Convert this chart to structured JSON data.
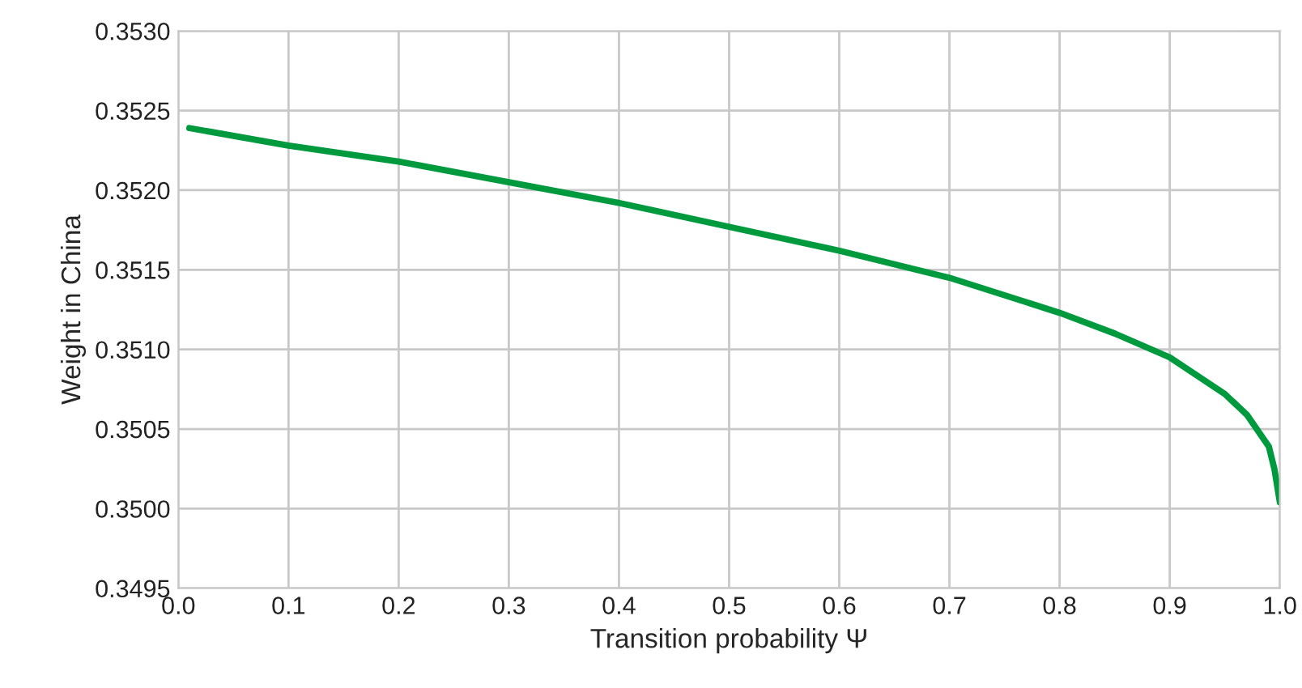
{
  "chart_data": {
    "type": "line",
    "xlabel": "Transition probability Ψ",
    "ylabel": "Weight in China",
    "x": [
      0.01,
      0.1,
      0.2,
      0.3,
      0.4,
      0.5,
      0.6,
      0.7,
      0.8,
      0.85,
      0.9,
      0.95,
      0.97,
      0.99,
      0.995,
      1.0
    ],
    "series": [
      {
        "color": "#009a3e",
        "values": [
          0.35239,
          0.35228,
          0.35218,
          0.35205,
          0.35192,
          0.35177,
          0.35162,
          0.35145,
          0.35123,
          0.3511,
          0.35095,
          0.35072,
          0.35059,
          0.35039,
          0.35025,
          0.35004
        ]
      }
    ],
    "xlim": [
      0,
      1
    ],
    "xticks": [
      {
        "value": 0,
        "label": "0.0"
      },
      0.1,
      0.2,
      0.3,
      0.4,
      0.5,
      0.6,
      0.7,
      0.8,
      0.9,
      {
        "value": 1,
        "label": "1.0"
      }
    ],
    "ylim": [
      0.3495,
      0.353
    ],
    "yticks": [
      0.3495,
      {
        "value": 0.35,
        "label": "0.3500"
      },
      0.3505,
      {
        "value": 0.351,
        "label": "0.3510"
      },
      0.3515,
      {
        "value": 0.352,
        "label": "0.3520"
      },
      0.3525,
      {
        "value": 0.353,
        "label": "0.3530"
      }
    ],
    "grid": true,
    "legend": false,
    "marker": "none",
    "line_style": "solid"
  }
}
